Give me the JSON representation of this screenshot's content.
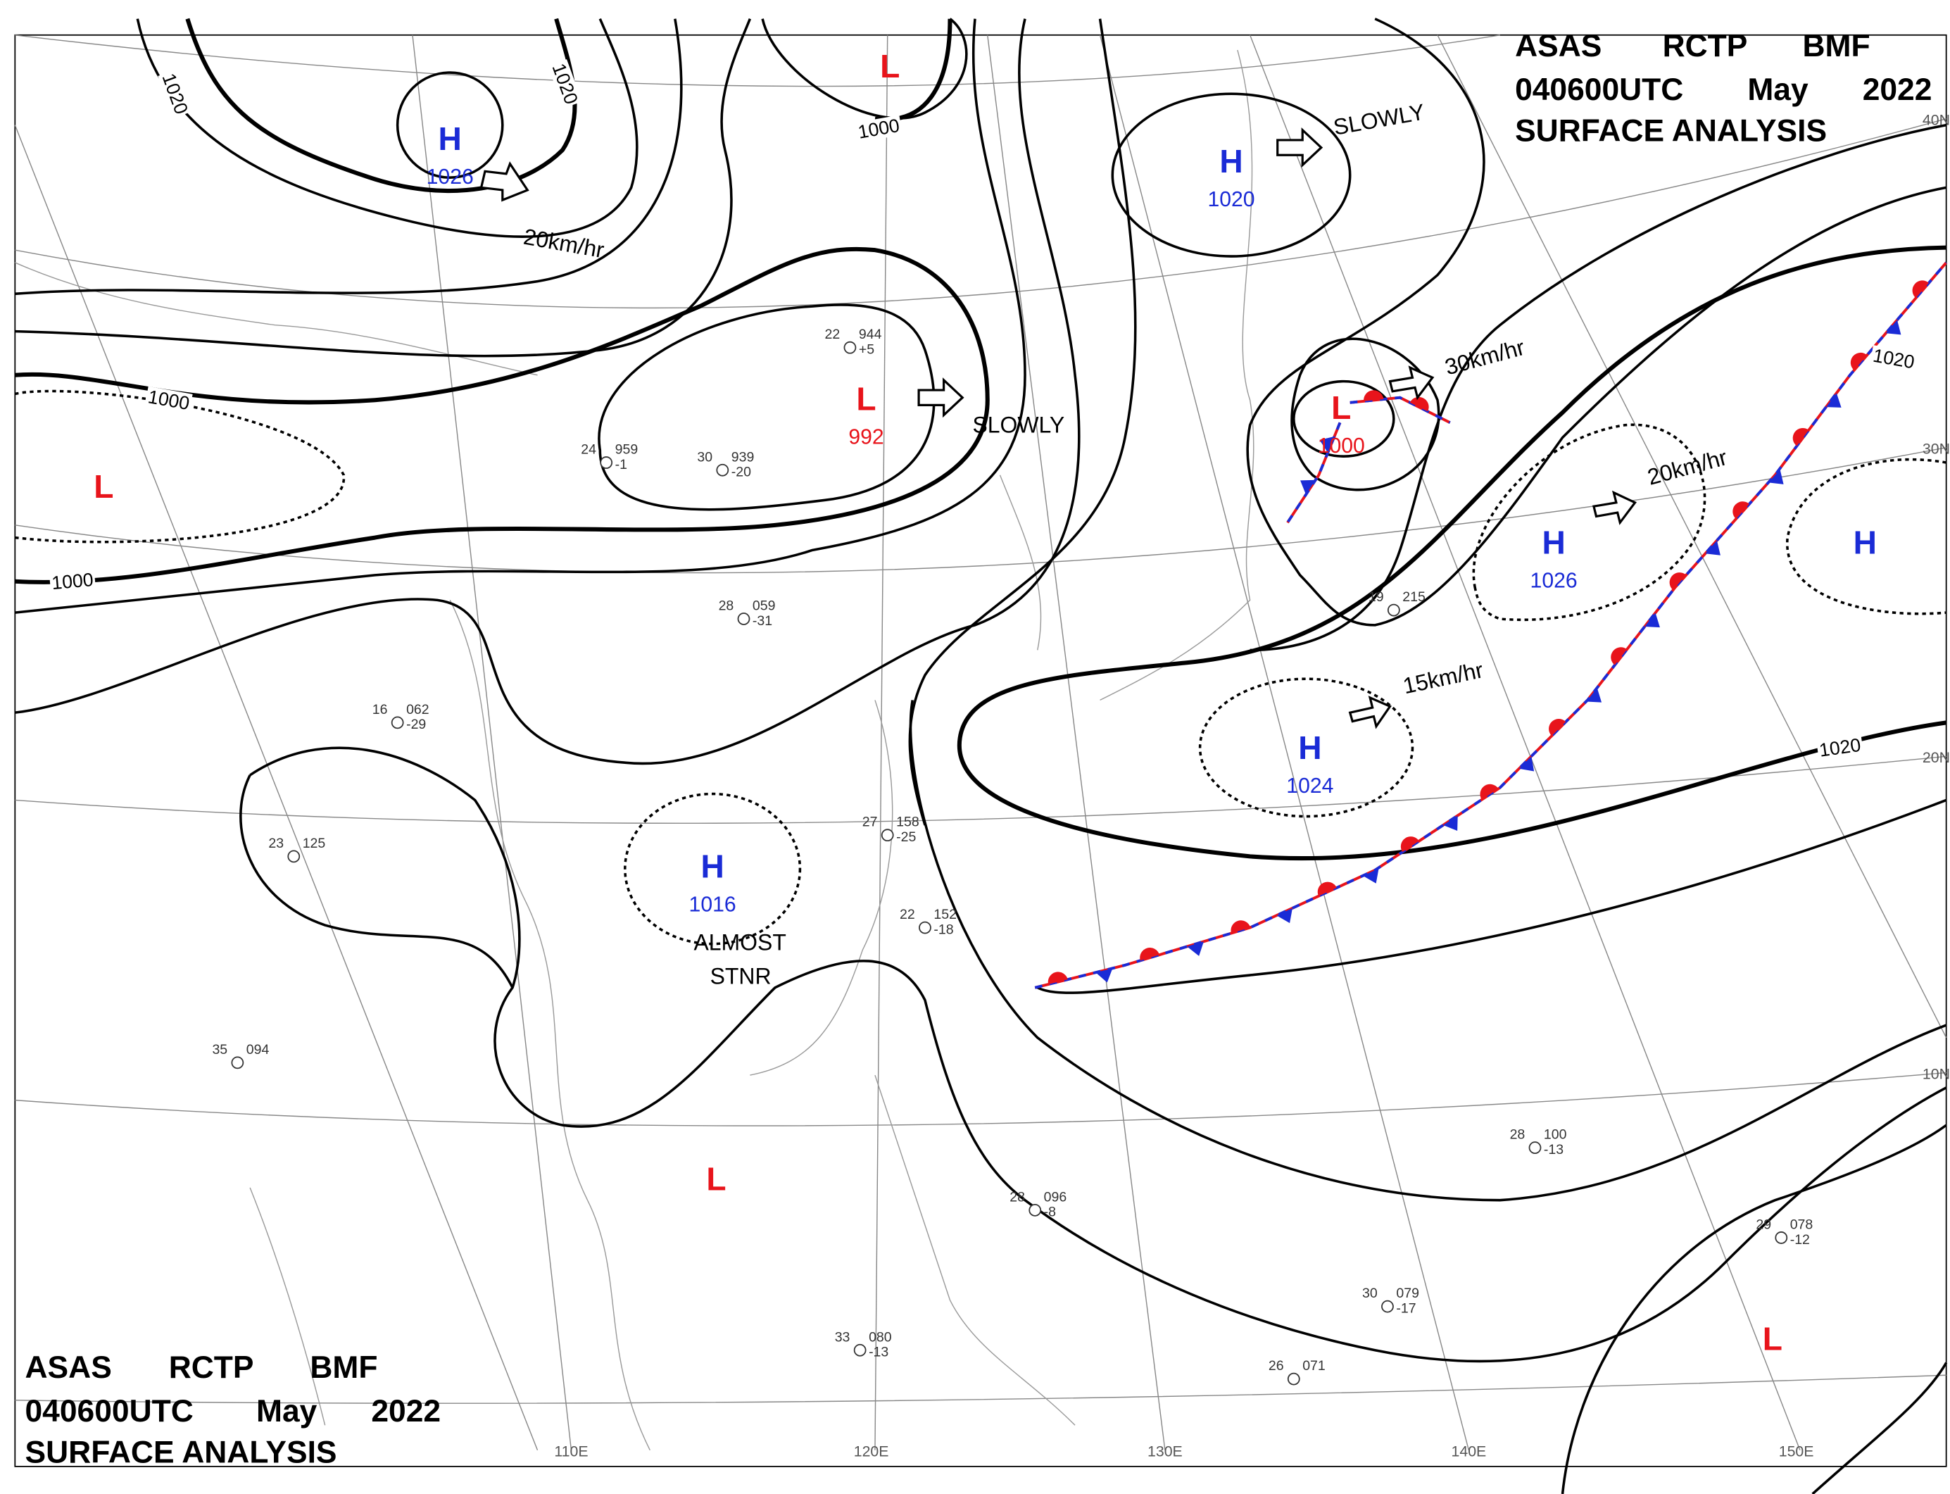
{
  "header": {
    "agency": "ASAS",
    "center": "RCTP",
    "code": "BMF",
    "time": "040600UTC",
    "month": "May",
    "year": "2022",
    "title": "SURFACE ANALYSIS"
  },
  "systems": [
    {
      "type": "H",
      "pressure": "1026"
    },
    {
      "type": "L"
    },
    {
      "type": "H",
      "pressure": "1020"
    },
    {
      "type": "L",
      "pressure": "992"
    },
    {
      "type": "L",
      "pressure": "1000"
    },
    {
      "type": "L"
    },
    {
      "type": "H",
      "pressure": "1026"
    },
    {
      "type": "H"
    },
    {
      "type": "H",
      "pressure": "1024"
    },
    {
      "type": "H",
      "pressure": "1016"
    },
    {
      "type": "L"
    },
    {
      "type": "L"
    }
  ],
  "isobar_labels": [
    "1020",
    "1020",
    "1000",
    "1000",
    "1000",
    "1020",
    "1020"
  ],
  "motions": [
    "20km/hr",
    "SLOWLY",
    "SLOWLY",
    "30km/hr",
    "20km/hr",
    "15km/hr",
    "ALMOST",
    "STNR"
  ],
  "latitudes": [
    "40N",
    "30N",
    "20N",
    "10N"
  ],
  "longitudes": [
    "110E",
    "120E",
    "130E",
    "140E",
    "150E"
  ],
  "stations": [
    {
      "temp": "22",
      "pressure": "944",
      "tendency": "+5"
    },
    {
      "temp": "30",
      "pressure": "939",
      "tendency": "-20"
    },
    {
      "temp": "24",
      "pressure": "959",
      "tendency": "-1"
    },
    {
      "temp": "23",
      "pressure": "125"
    },
    {
      "temp": "28",
      "pressure": "059",
      "tendency": "-31"
    },
    {
      "temp": "27",
      "pressure": "158",
      "tendency": "-25"
    },
    {
      "temp": "28",
      "pressure": "096",
      "tendency": "-8"
    },
    {
      "temp": "28",
      "pressure": "100",
      "tendency": "-13"
    },
    {
      "temp": "29",
      "pressure": "078",
      "tendency": "-12"
    },
    {
      "temp": "30",
      "pressure": "079",
      "tendency": "-17"
    },
    {
      "temp": "33",
      "pressure": "080",
      "tendency": "-13"
    },
    {
      "temp": "26",
      "pressure": "071"
    },
    {
      "temp": "35",
      "pressure": "094"
    },
    {
      "temp": "16",
      "pressure": "062",
      "tendency": "-29"
    },
    {
      "temp": "19",
      "pressure": "215"
    },
    {
      "temp": "22",
      "pressure": "152",
      "tendency": "-18"
    }
  ]
}
